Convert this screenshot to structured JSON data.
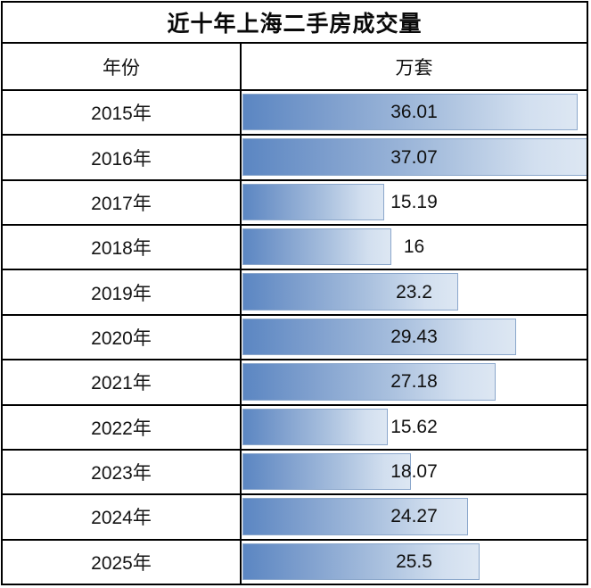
{
  "title": "近十年上海二手房成交量",
  "columns": {
    "year": "年份",
    "unit": "万套"
  },
  "rows": [
    {
      "year": "2015年",
      "value": "36.01"
    },
    {
      "year": "2016年",
      "value": "37.07"
    },
    {
      "year": "2017年",
      "value": "15.19"
    },
    {
      "year": "2018年",
      "value": "16"
    },
    {
      "year": "2019年",
      "value": "23.2"
    },
    {
      "year": "2020年",
      "value": "29.43"
    },
    {
      "year": "2021年",
      "value": "27.18"
    },
    {
      "year": "2022年",
      "value": "15.62"
    },
    {
      "year": "2023年",
      "value": "18.07"
    },
    {
      "year": "2024年",
      "value": "24.27"
    },
    {
      "year": "2025年",
      "value": "25.5"
    }
  ],
  "chart_data": {
    "type": "bar",
    "orientation": "horizontal",
    "title": "近十年上海二手房成交量",
    "categories": [
      "2015年",
      "2016年",
      "2017年",
      "2018年",
      "2019年",
      "2020年",
      "2021年",
      "2022年",
      "2023年",
      "2024年",
      "2025年"
    ],
    "values": [
      36.01,
      37.07,
      15.19,
      16,
      23.2,
      29.43,
      27.18,
      15.62,
      18.07,
      24.27,
      25.5
    ],
    "xlabel": "万套",
    "ylabel": "年份",
    "xlim": [
      0,
      37.07
    ],
    "grid": false,
    "legend": "none",
    "bar_gradient_start": "#5b86c2",
    "bar_gradient_end": "#dde7f3",
    "bar_border_color": "#8ba7cb",
    "table_border_color": "#000000",
    "label_position": "centered-in-column"
  }
}
